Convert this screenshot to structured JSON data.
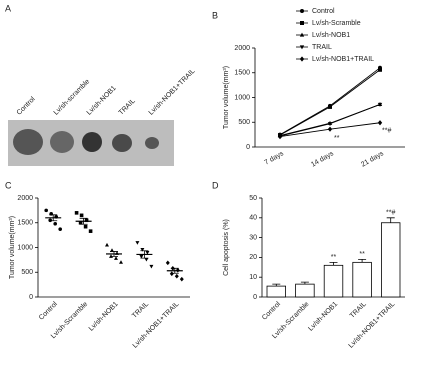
{
  "panel_a": {
    "panel_label": "A",
    "labels": [
      "Control",
      "Lv/sh-scramble",
      "Lv/sh-NOB1",
      "TRAIL",
      "Lv/sh-NOB1+TRAIL"
    ]
  },
  "chart_data": [
    {
      "type": "line",
      "panel_label": "B",
      "y_label": "Tumor volume(mm³)",
      "categories": [
        "7 days",
        "14 days",
        "21 days"
      ],
      "series": [
        {
          "name": "Control",
          "color": "#000000",
          "marker": "circle",
          "values": [
            250,
            830,
            1600
          ]
        },
        {
          "name": "Lv/sh-Scramble",
          "color": "#000000",
          "marker": "square",
          "values": [
            240,
            810,
            1560
          ]
        },
        {
          "name": "Lv/sh-NOB1",
          "color": "#000000",
          "marker": "triangle",
          "values": [
            230,
            480,
            860
          ]
        },
        {
          "name": "TRAIL",
          "color": "#000000",
          "marker": "triangle-down",
          "values": [
            220,
            470,
            860
          ]
        },
        {
          "name": "Lv/sh-NOB1+TRAIL",
          "color": "#000000",
          "marker": "diamond",
          "values": [
            210,
            360,
            490
          ]
        }
      ],
      "annotations": [
        "**",
        "**#"
      ],
      "ylim": [
        0,
        2000
      ],
      "yticks": [
        0,
        500,
        1000,
        1500,
        2000
      ]
    },
    {
      "type": "dot",
      "panel_label": "C",
      "y_label": "Tumor volume(mm³)",
      "categories": [
        "Control",
        "Lv/sh-Scramble",
        "Lv/sh-NOB1",
        "TRAIL",
        "Lv/sh-NOB1+TRAIL"
      ],
      "markers": [
        "circle",
        "square",
        "triangle",
        "triangle-down",
        "diamond"
      ],
      "points": [
        [
          1750,
          1680,
          1620,
          1550,
          1480,
          1370
        ],
        [
          1700,
          1650,
          1550,
          1500,
          1420,
          1330
        ],
        [
          1050,
          940,
          880,
          820,
          780,
          700
        ],
        [
          1100,
          960,
          900,
          820,
          760,
          620
        ],
        [
          690,
          580,
          540,
          470,
          420,
          360
        ]
      ],
      "means": [
        1600,
        1530,
        870,
        860,
        530
      ],
      "errors": [
        60,
        60,
        50,
        75,
        50
      ],
      "color": "#000000",
      "ylim": [
        0,
        2000
      ],
      "yticks": [
        0,
        500,
        1000,
        1500,
        2000
      ]
    },
    {
      "type": "bar",
      "panel_label": "D",
      "y_label": "Cell apoptosis (%)",
      "categories": [
        "Control",
        "Lv/sh-Scramble",
        "Lv/sh-NOB1",
        "TRAIL",
        "Lv/sh-NOB1+TRAIL"
      ],
      "values": [
        5.5,
        6.5,
        16,
        17.5,
        37.5
      ],
      "errors": [
        1,
        1,
        1.5,
        1.5,
        2.5
      ],
      "value_annotations": [
        null,
        null,
        "**",
        "**",
        "**#"
      ],
      "color": "#ffffff",
      "ylim": [
        0,
        50
      ],
      "yticks": [
        0,
        10,
        20,
        30,
        40,
        50
      ]
    }
  ]
}
